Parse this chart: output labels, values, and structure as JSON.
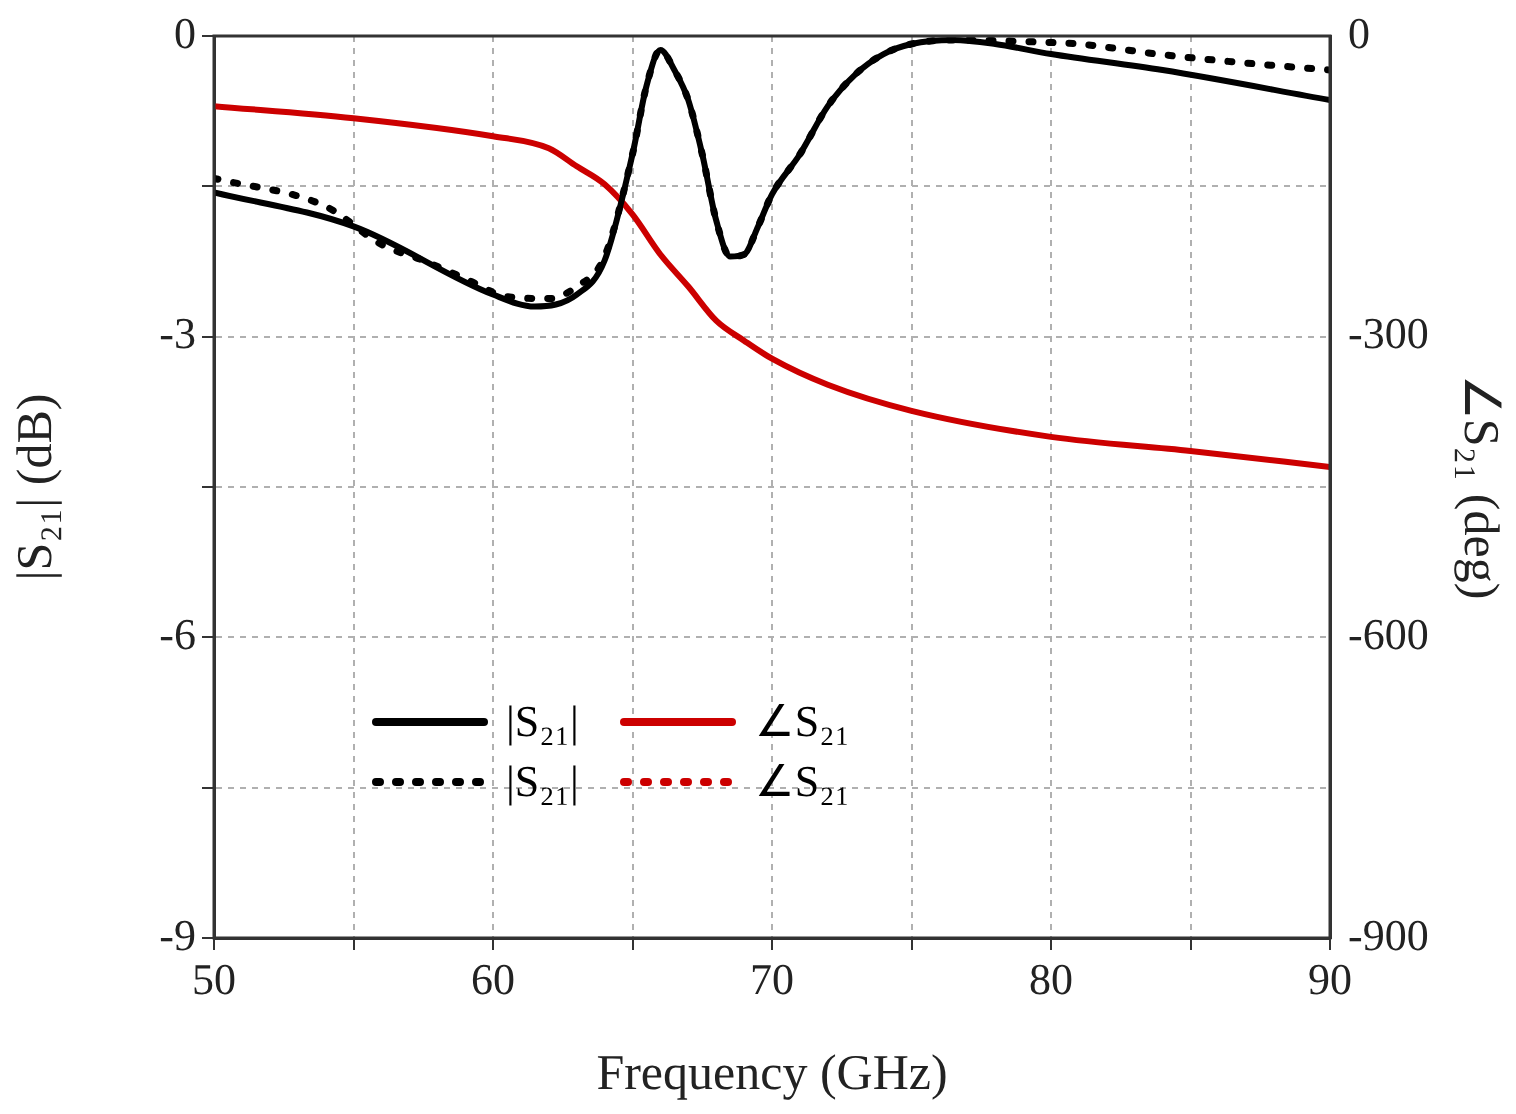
{
  "chart_data": {
    "type": "line",
    "xlabel": "Frequency (GHz)",
    "ylabel": "|S₂₁| (dB)",
    "y2label": "∠S₂₁ (deg)",
    "xlim": [
      50,
      90
    ],
    "xticks": [
      50,
      {
        "value": 55,
        "label": null
      },
      60,
      {
        "value": 65,
        "label": null
      },
      70,
      {
        "value": 75,
        "label": null
      },
      80,
      {
        "value": 85,
        "label": null
      },
      90
    ],
    "ylim": [
      -9,
      0
    ],
    "yticks": [
      0,
      {
        "value": -1.5,
        "label": null
      },
      -3,
      {
        "value": -4.5,
        "label": null
      },
      -6,
      {
        "value": -7.5,
        "label": null
      },
      -9
    ],
    "y2lim": [
      -900,
      0
    ],
    "y2ticks": [
      0,
      -300,
      -600,
      -900
    ],
    "grid": true,
    "legend": "bottom",
    "marker": "none",
    "series": [
      {
        "name": "|S₂₁|",
        "color": "#000000",
        "line_style": "solid",
        "x": [
          50,
          55,
          60,
          61.5,
          63,
          64,
          65,
          65.5,
          66,
          66.5,
          67,
          67.5,
          68,
          68.5,
          69,
          69.5,
          70,
          71,
          72,
          73,
          74,
          75,
          76.5,
          78,
          80,
          84,
          90
        ],
        "values": [
          -1.56,
          -1.9,
          -2.58,
          -2.7,
          -2.58,
          -2.24,
          -1.18,
          -0.5,
          -0.14,
          -0.34,
          -0.64,
          -1.18,
          -1.84,
          -2.2,
          -2.18,
          -1.9,
          -1.58,
          -1.18,
          -0.7,
          -0.38,
          -0.18,
          -0.08,
          -0.04,
          -0.08,
          -0.18,
          -0.34,
          -0.64
        ]
      },
      {
        "name": "|S₂₁|",
        "color": "#000000",
        "line_style": "dotted",
        "x": [
          50,
          54,
          56,
          57.5,
          59,
          60.5,
          62,
          63,
          64,
          65,
          65.5,
          66,
          66.5,
          67,
          67.5,
          68,
          68.5,
          69,
          69.5,
          70,
          71,
          72,
          73,
          74,
          75,
          76.5,
          79.5,
          81,
          83.8,
          86.6,
          90
        ],
        "values": [
          -1.42,
          -1.7,
          -2.08,
          -2.24,
          -2.42,
          -2.6,
          -2.62,
          -2.5,
          -2.2,
          -1.18,
          -0.5,
          -0.14,
          -0.34,
          -0.64,
          -1.18,
          -1.84,
          -2.2,
          -2.18,
          -1.9,
          -1.58,
          -1.18,
          -0.7,
          -0.38,
          -0.18,
          -0.08,
          -0.04,
          -0.06,
          -0.08,
          -0.18,
          -0.26,
          -0.34
        ]
      },
      {
        "name": "∠S₂₁",
        "color": "#cc0000",
        "line_style": "solid",
        "axis": "y2",
        "x": [
          50,
          55,
          60,
          62,
          63,
          64,
          65,
          66,
          67,
          68,
          69,
          70,
          72,
          75,
          80,
          85,
          90
        ],
        "values": [
          -70,
          -82,
          -100,
          -112,
          -130,
          -148,
          -178,
          -218,
          -250,
          -284,
          -304,
          -322,
          -348,
          -374,
          -400,
          -414,
          -430
        ]
      },
      {
        "name": "∠S₂₁",
        "color": "#cc0000",
        "line_style": "dotted",
        "axis": "y2"
      }
    ]
  }
}
